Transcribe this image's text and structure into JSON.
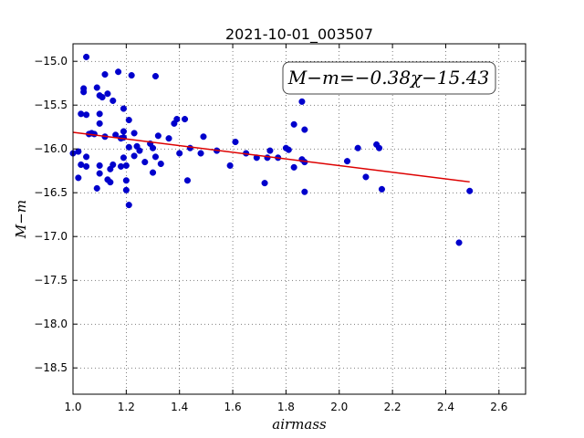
{
  "chart_data": {
    "type": "scatter",
    "title": "2021-10-01_003507",
    "xlabel": "airmass",
    "ylabel": "M−m",
    "xlim": [
      1.0,
      2.7
    ],
    "ylim": [
      -18.8,
      -14.8
    ],
    "y_inverted": true,
    "grid": true,
    "x_ticks": [
      "1.0",
      "1.2",
      "1.4",
      "1.6",
      "1.8",
      "2.0",
      "2.2",
      "2.4",
      "2.6"
    ],
    "y_ticks": [
      "−15.0",
      "−15.5",
      "−16.0",
      "−16.5",
      "−17.0",
      "−17.5",
      "−18.0",
      "−18.5"
    ],
    "annotation": "M−m=−0.38χ−15.43",
    "fit": {
      "slope": -0.38,
      "intercept": -15.43,
      "x_range": [
        1.0,
        2.49
      ],
      "color": "#dd0000"
    },
    "point_color": "#0000cc",
    "points": [
      [
        1.0,
        -16.05
      ],
      [
        1.02,
        -16.33
      ],
      [
        1.02,
        -16.03
      ],
      [
        1.03,
        -16.18
      ],
      [
        1.03,
        -15.6
      ],
      [
        1.04,
        -15.35
      ],
      [
        1.04,
        -15.31
      ],
      [
        1.05,
        -14.95
      ],
      [
        1.05,
        -15.61
      ],
      [
        1.05,
        -16.09
      ],
      [
        1.05,
        -16.2
      ],
      [
        1.06,
        -15.83
      ],
      [
        1.07,
        -15.82
      ],
      [
        1.08,
        -15.83
      ],
      [
        1.09,
        -16.45
      ],
      [
        1.09,
        -15.3
      ],
      [
        1.1,
        -15.39
      ],
      [
        1.1,
        -15.71
      ],
      [
        1.1,
        -15.6
      ],
      [
        1.1,
        -16.19
      ],
      [
        1.1,
        -16.28
      ],
      [
        1.11,
        -15.41
      ],
      [
        1.12,
        -15.15
      ],
      [
        1.12,
        -15.86
      ],
      [
        1.13,
        -15.37
      ],
      [
        1.13,
        -16.35
      ],
      [
        1.14,
        -16.38
      ],
      [
        1.14,
        -16.23
      ],
      [
        1.15,
        -15.45
      ],
      [
        1.15,
        -16.18
      ],
      [
        1.16,
        -15.84
      ],
      [
        1.17,
        -15.12
      ],
      [
        1.18,
        -15.88
      ],
      [
        1.18,
        -16.2
      ],
      [
        1.19,
        -15.54
      ],
      [
        1.19,
        -15.8
      ],
      [
        1.19,
        -15.87
      ],
      [
        1.19,
        -16.1
      ],
      [
        1.2,
        -16.36
      ],
      [
        1.2,
        -16.47
      ],
      [
        1.2,
        -16.19
      ],
      [
        1.21,
        -15.67
      ],
      [
        1.21,
        -15.98
      ],
      [
        1.21,
        -16.64
      ],
      [
        1.22,
        -15.16
      ],
      [
        1.23,
        -15.82
      ],
      [
        1.23,
        -16.08
      ],
      [
        1.24,
        -15.97
      ],
      [
        1.25,
        -16.02
      ],
      [
        1.27,
        -16.15
      ],
      [
        1.29,
        -15.94
      ],
      [
        1.3,
        -16.27
      ],
      [
        1.3,
        -15.99
      ],
      [
        1.31,
        -15.17
      ],
      [
        1.31,
        -16.09
      ],
      [
        1.32,
        -15.85
      ],
      [
        1.33,
        -16.17
      ],
      [
        1.36,
        -15.88
      ],
      [
        1.38,
        -15.71
      ],
      [
        1.39,
        -15.66
      ],
      [
        1.4,
        -16.05
      ],
      [
        1.42,
        -15.66
      ],
      [
        1.43,
        -16.36
      ],
      [
        1.44,
        -15.99
      ],
      [
        1.48,
        -16.05
      ],
      [
        1.49,
        -15.86
      ],
      [
        1.54,
        -16.02
      ],
      [
        1.59,
        -16.19
      ],
      [
        1.61,
        -15.92
      ],
      [
        1.65,
        -16.05
      ],
      [
        1.69,
        -16.1
      ],
      [
        1.72,
        -16.39
      ],
      [
        1.73,
        -16.1
      ],
      [
        1.74,
        -16.02
      ],
      [
        1.77,
        -16.1
      ],
      [
        1.8,
        -15.99
      ],
      [
        1.81,
        -16.01
      ],
      [
        1.83,
        -15.72
      ],
      [
        1.83,
        -16.21
      ],
      [
        1.86,
        -16.12
      ],
      [
        1.86,
        -15.46
      ],
      [
        1.87,
        -15.78
      ],
      [
        1.87,
        -16.15
      ],
      [
        1.87,
        -16.49
      ],
      [
        2.03,
        -16.14
      ],
      [
        2.07,
        -15.99
      ],
      [
        2.1,
        -16.32
      ],
      [
        2.14,
        -15.95
      ],
      [
        2.15,
        -15.99
      ],
      [
        2.16,
        -16.46
      ],
      [
        2.45,
        -17.07
      ],
      [
        2.49,
        -16.48
      ]
    ]
  }
}
